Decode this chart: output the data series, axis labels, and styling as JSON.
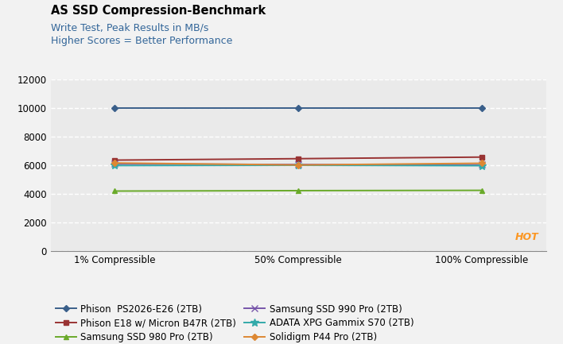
{
  "title_line1": "AS SSD Compression-Benchmark",
  "title_line2": "Write Test, Peak Results in MB/s",
  "title_line3": "Higher Scores = Better Performance",
  "x_labels": [
    "1% Compressible",
    "50% Compressible",
    "100% Compressible"
  ],
  "x_positions": [
    0,
    1,
    2
  ],
  "ylim": [
    0,
    12000
  ],
  "yticks": [
    0,
    2000,
    4000,
    6000,
    8000,
    10000,
    12000
  ],
  "series": [
    {
      "label": "Phison  PS2026-E26 (2TB)",
      "color": "#3a5f8a",
      "marker": "D",
      "markersize": 4,
      "values": [
        10000,
        10000,
        10000
      ]
    },
    {
      "label": "Phison E18 w/ Micron B47R (2TB)",
      "color": "#993333",
      "marker": "s",
      "markersize": 4,
      "values": [
        6350,
        6450,
        6560
      ]
    },
    {
      "label": "Samsung SSD 980 Pro (2TB)",
      "color": "#6aaa2a",
      "marker": "^",
      "markersize": 5,
      "values": [
        4190,
        4220,
        4240
      ]
    },
    {
      "label": "Samsung SSD 990 Pro (2TB)",
      "color": "#7755aa",
      "marker": "x",
      "markersize": 6,
      "values": [
        6080,
        6040,
        6020
      ]
    },
    {
      "label": "ADATA XPG Gammix S70 (2TB)",
      "color": "#33aaaa",
      "marker": "*",
      "markersize": 7,
      "values": [
        5970,
        5990,
        5960
      ]
    },
    {
      "label": "Solidigm P44 Pro (2TB)",
      "color": "#dd8833",
      "marker": "D",
      "markersize": 4,
      "values": [
        6150,
        6010,
        6130
      ]
    }
  ],
  "plot_bg_color": "#eaeaea",
  "fig_bg_color": "#f2f2f2",
  "grid_color": "#ffffff",
  "title1_color": "#000000",
  "title23_color": "#336699",
  "legend_order": [
    0,
    1,
    2,
    3,
    4,
    5
  ]
}
